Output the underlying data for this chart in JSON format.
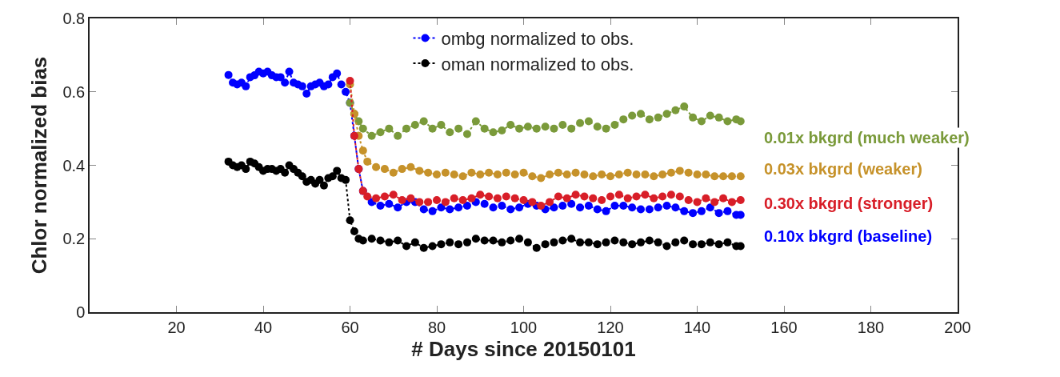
{
  "chart_data": {
    "type": "line",
    "xlabel": "# Days since 20150101",
    "ylabel": "Chlor normalized bias",
    "xlim": [
      0,
      200
    ],
    "xticks": [
      20,
      40,
      60,
      80,
      100,
      120,
      140,
      160,
      180,
      200
    ],
    "ylim": [
      0,
      0.8
    ],
    "yticks": [
      0,
      0.2,
      0.4,
      0.6,
      0.8
    ],
    "legend": "top",
    "marker": "circle",
    "line_style": "dotted",
    "annotations": [
      {
        "text": "0.10x bkgrd (baseline)",
        "x": 150,
        "y": 0.265
      }
    ],
    "series": [
      {
        "name": "ombg normalized to obs.",
        "color": "#0000ff",
        "x": [
          32,
          33,
          34,
          35,
          36,
          37,
          38,
          39,
          40,
          41,
          42,
          43,
          44,
          45,
          46,
          47,
          48,
          49,
          50,
          51,
          52,
          53,
          54,
          55,
          56,
          57,
          58,
          59,
          60,
          61,
          62,
          63,
          65,
          67,
          69,
          71,
          73,
          75,
          77,
          79,
          81,
          83,
          85,
          87,
          89,
          91,
          93,
          95,
          97,
          99,
          101,
          103,
          105,
          107,
          109,
          111,
          113,
          115,
          117,
          119,
          121,
          123,
          125,
          127,
          129,
          131,
          133,
          135,
          137,
          139,
          141,
          143,
          145,
          147,
          149,
          150
        ],
        "values": [
          0.646,
          0.625,
          0.62,
          0.625,
          0.615,
          0.64,
          0.645,
          0.655,
          0.65,
          0.655,
          0.645,
          0.64,
          0.64,
          0.625,
          0.655,
          0.625,
          0.62,
          0.615,
          0.595,
          0.615,
          0.62,
          0.625,
          0.615,
          0.62,
          0.64,
          0.65,
          0.62,
          0.6,
          0.57,
          0.48,
          0.39,
          0.33,
          0.3,
          0.29,
          0.295,
          0.285,
          0.3,
          0.3,
          0.28,
          0.275,
          0.285,
          0.28,
          0.285,
          0.29,
          0.3,
          0.295,
          0.285,
          0.29,
          0.28,
          0.285,
          0.295,
          0.29,
          0.28,
          0.285,
          0.29,
          0.295,
          0.285,
          0.29,
          0.28,
          0.275,
          0.29,
          0.29,
          0.285,
          0.28,
          0.28,
          0.285,
          0.29,
          0.285,
          0.275,
          0.27,
          0.275,
          0.285,
          0.27,
          0.275,
          0.265,
          0.265
        ]
      },
      {
        "name": "oman normalized to obs.",
        "color": "#000000",
        "x": [
          32,
          33,
          34,
          35,
          36,
          37,
          38,
          39,
          40,
          41,
          42,
          43,
          44,
          45,
          46,
          47,
          48,
          49,
          50,
          51,
          52,
          53,
          54,
          55,
          56,
          57,
          58,
          59,
          60,
          61,
          62,
          63,
          65,
          67,
          69,
          71,
          73,
          75,
          77,
          79,
          81,
          83,
          85,
          87,
          89,
          91,
          93,
          95,
          97,
          99,
          101,
          103,
          105,
          107,
          109,
          111,
          113,
          115,
          117,
          119,
          121,
          123,
          125,
          127,
          129,
          131,
          133,
          135,
          137,
          139,
          141,
          143,
          145,
          147,
          149,
          150
        ],
        "values": [
          0.41,
          0.4,
          0.395,
          0.4,
          0.39,
          0.41,
          0.405,
          0.395,
          0.385,
          0.39,
          0.39,
          0.385,
          0.39,
          0.38,
          0.4,
          0.39,
          0.38,
          0.37,
          0.355,
          0.36,
          0.35,
          0.36,
          0.345,
          0.365,
          0.37,
          0.385,
          0.365,
          0.36,
          0.25,
          0.22,
          0.2,
          0.195,
          0.2,
          0.195,
          0.19,
          0.195,
          0.18,
          0.19,
          0.175,
          0.18,
          0.185,
          0.19,
          0.185,
          0.19,
          0.2,
          0.195,
          0.195,
          0.19,
          0.195,
          0.2,
          0.19,
          0.175,
          0.185,
          0.19,
          0.195,
          0.2,
          0.19,
          0.19,
          0.185,
          0.19,
          0.195,
          0.19,
          0.185,
          0.19,
          0.195,
          0.19,
          0.18,
          0.19,
          0.195,
          0.185,
          0.185,
          0.19,
          0.185,
          0.19,
          0.18,
          0.18
        ]
      },
      {
        "name": "0.01x bkgrd (much weaker)",
        "color": "#7a9a3a",
        "x": [
          60,
          61,
          62,
          63,
          65,
          67,
          69,
          71,
          73,
          75,
          77,
          79,
          81,
          83,
          85,
          87,
          89,
          91,
          93,
          95,
          97,
          99,
          101,
          103,
          105,
          107,
          109,
          111,
          113,
          115,
          117,
          119,
          121,
          123,
          125,
          127,
          129,
          131,
          133,
          135,
          137,
          139,
          141,
          143,
          145,
          147,
          149,
          150
        ],
        "values": [
          0.57,
          0.54,
          0.52,
          0.5,
          0.48,
          0.49,
          0.5,
          0.48,
          0.5,
          0.51,
          0.52,
          0.5,
          0.51,
          0.49,
          0.5,
          0.485,
          0.52,
          0.5,
          0.49,
          0.495,
          0.51,
          0.5,
          0.505,
          0.5,
          0.505,
          0.5,
          0.51,
          0.5,
          0.515,
          0.52,
          0.505,
          0.5,
          0.51,
          0.525,
          0.535,
          0.54,
          0.525,
          0.53,
          0.54,
          0.55,
          0.56,
          0.53,
          0.52,
          0.535,
          0.53,
          0.52,
          0.525,
          0.52
        ]
      },
      {
        "name": "0.03x bkgrd (weaker)",
        "color": "#c6922a",
        "x": [
          60,
          61,
          62,
          63,
          64,
          66,
          68,
          70,
          72,
          74,
          76,
          78,
          80,
          82,
          84,
          86,
          88,
          90,
          92,
          94,
          96,
          98,
          100,
          102,
          104,
          106,
          108,
          110,
          112,
          114,
          116,
          118,
          120,
          122,
          124,
          126,
          128,
          130,
          132,
          134,
          136,
          138,
          140,
          142,
          144,
          146,
          148,
          150
        ],
        "values": [
          0.62,
          0.54,
          0.48,
          0.44,
          0.41,
          0.395,
          0.39,
          0.38,
          0.39,
          0.395,
          0.385,
          0.38,
          0.375,
          0.38,
          0.375,
          0.37,
          0.38,
          0.375,
          0.38,
          0.375,
          0.38,
          0.375,
          0.38,
          0.37,
          0.365,
          0.375,
          0.38,
          0.375,
          0.38,
          0.375,
          0.37,
          0.375,
          0.37,
          0.375,
          0.38,
          0.375,
          0.375,
          0.37,
          0.375,
          0.38,
          0.385,
          0.38,
          0.375,
          0.375,
          0.37,
          0.37,
          0.37,
          0.37
        ]
      },
      {
        "name": "0.30x bkgrd (stronger)",
        "color": "#d81e28",
        "x": [
          60,
          61,
          62,
          63,
          64,
          66,
          68,
          70,
          72,
          74,
          76,
          78,
          80,
          82,
          84,
          86,
          88,
          90,
          92,
          94,
          96,
          98,
          100,
          102,
          104,
          106,
          108,
          110,
          112,
          114,
          116,
          118,
          120,
          122,
          124,
          126,
          128,
          130,
          132,
          134,
          136,
          138,
          140,
          142,
          144,
          146,
          148,
          150
        ],
        "values": [
          0.63,
          0.48,
          0.39,
          0.33,
          0.315,
          0.31,
          0.315,
          0.32,
          0.305,
          0.31,
          0.3,
          0.3,
          0.305,
          0.3,
          0.31,
          0.305,
          0.31,
          0.32,
          0.315,
          0.31,
          0.315,
          0.31,
          0.305,
          0.3,
          0.29,
          0.3,
          0.315,
          0.31,
          0.32,
          0.315,
          0.31,
          0.305,
          0.315,
          0.32,
          0.31,
          0.315,
          0.32,
          0.31,
          0.315,
          0.32,
          0.315,
          0.305,
          0.3,
          0.31,
          0.3,
          0.31,
          0.3,
          0.305
        ]
      }
    ]
  }
}
